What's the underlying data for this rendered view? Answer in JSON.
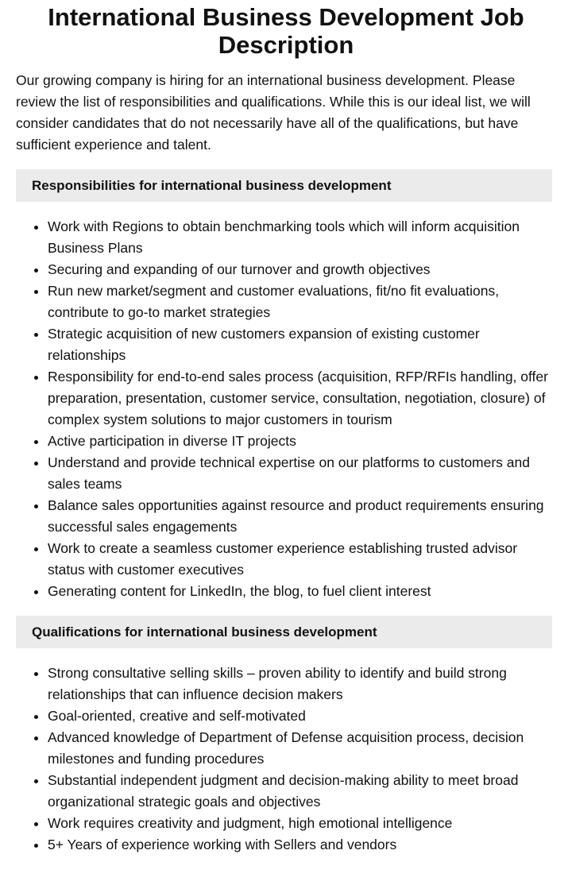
{
  "title": "International Business Development Job Description",
  "intro": "Our growing company is hiring for an international business development. Please review the list of responsibilities and qualifications. While this is our ideal list, we will consider candidates that do not necessarily have all of the qualifications, but have sufficient experience and talent.",
  "responsibilities": {
    "heading": "Responsibilities for international business development",
    "items": [
      "Work with Regions to obtain benchmarking tools which will inform acquisition Business Plans",
      "Securing and expanding of our turnover and growth objectives",
      "Run new market/segment and customer evaluations, fit/no fit evaluations, contribute to go-to market strategies",
      "Strategic acquisition of new customers expansion of existing customer relationships",
      "Responsibility for end-to-end sales process (acquisition, RFP/RFIs handling, offer preparation, presentation, customer service, consultation, negotiation, closure) of complex system solutions to major customers in tourism",
      "Active participation in diverse IT projects",
      "Understand and provide technical expertise on our platforms to customers and sales teams",
      "Balance sales opportunities against resource and product requirements ensuring successful sales engagements",
      "Work to create a seamless customer experience establishing trusted advisor status with customer executives",
      "Generating content for LinkedIn, the blog, to fuel client interest"
    ]
  },
  "qualifications": {
    "heading": "Qualifications for international business development",
    "items": [
      "Strong consultative selling skills – proven ability to identify and build strong relationships that can influence decision makers",
      "Goal-oriented, creative and self-motivated",
      "Advanced knowledge of Department of Defense acquisition process, decision milestones and funding procedures",
      "Substantial independent judgment and decision-making ability to meet broad organizational strategic goals and objectives",
      "Work requires creativity and judgment, high emotional intelligence",
      "5+ Years of experience working with Sellers and vendors"
    ]
  }
}
